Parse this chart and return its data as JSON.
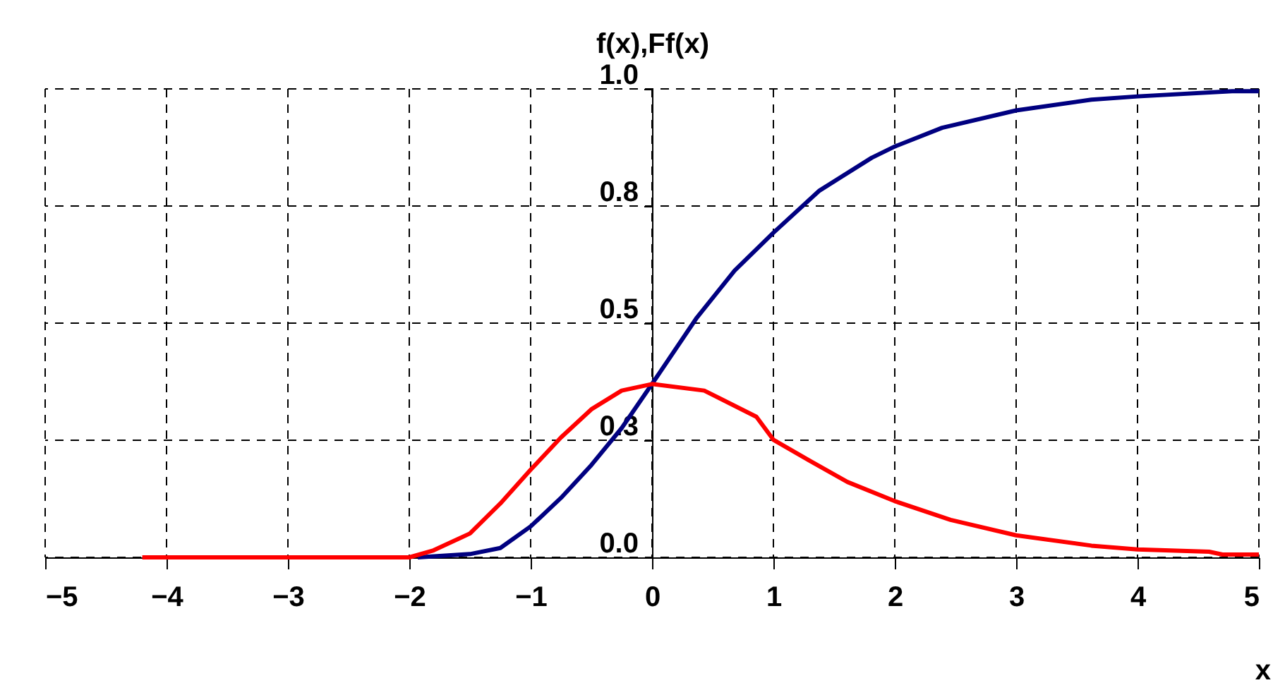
{
  "chart_data": {
    "type": "line",
    "ylabel": "f(x),Ff(x)",
    "xlabel": "x",
    "xlim": [
      -5,
      5
    ],
    "xticks": [
      -5,
      -4,
      -3,
      -2,
      -1,
      0,
      1,
      2,
      3,
      4,
      5
    ],
    "ylim": [
      0,
      1
    ],
    "yticks": [
      {
        "value": 0,
        "label": "0.0"
      },
      {
        "value": 0.25,
        "label": "0.3"
      },
      {
        "value": 0.5,
        "label": "0.5"
      },
      {
        "value": 0.75,
        "label": "0.8"
      },
      {
        "value": 1,
        "label": "1.0"
      }
    ],
    "grid": true,
    "marker": "none",
    "line_style": "solid",
    "series": [
      {
        "color": "#000080",
        "x": [
          -1.93,
          -1.5,
          -1.25,
          -1.0,
          -0.75,
          -0.5,
          -0.25,
          0,
          0.37,
          0.68,
          1.0,
          1.38,
          1.81,
          2.0,
          2.39,
          3.0,
          3.62,
          4.0,
          4.78,
          5.0
        ],
        "values": [
          0,
          0.007,
          0.02,
          0.066,
          0.127,
          0.197,
          0.276,
          0.37,
          0.512,
          0.612,
          0.693,
          0.783,
          0.853,
          0.877,
          0.917,
          0.954,
          0.977,
          0.984,
          0.995,
          0.995
        ]
      },
      {
        "color": "#ff0000",
        "x": [
          -4.2,
          -2.0,
          -1.8,
          -1.5,
          -1.25,
          -1.0,
          -0.75,
          -0.5,
          -0.25,
          0,
          0.43,
          0.86,
          1.0,
          1.3,
          1.61,
          2.0,
          2.46,
          3.0,
          3.62,
          4.0,
          4.59,
          4.7,
          5.0
        ],
        "values": [
          0,
          0,
          0.015,
          0.051,
          0.115,
          0.187,
          0.256,
          0.316,
          0.356,
          0.37,
          0.356,
          0.3,
          0.251,
          0.206,
          0.161,
          0.12,
          0.08,
          0.047,
          0.025,
          0.017,
          0.012,
          0.006,
          0.006
        ]
      }
    ]
  }
}
